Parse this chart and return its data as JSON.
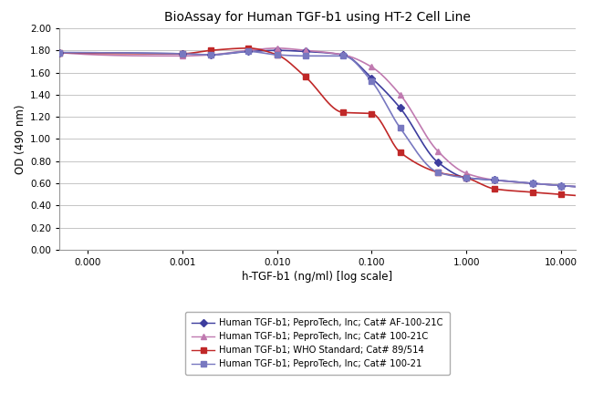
{
  "title": "BioAssay for Human TGF-b1 using HT-2 Cell Line",
  "xlabel": "h-TGF-b1 (ng/ml) [log scale]",
  "ylabel": "OD (490 nm)",
  "ylim": [
    0.0,
    2.0
  ],
  "yticks": [
    0.0,
    0.2,
    0.4,
    0.6,
    0.8,
    1.0,
    1.2,
    1.4,
    1.6,
    1.8,
    2.0
  ],
  "xtick_labels": [
    "0.000",
    "0.001",
    "0.010",
    "0.100",
    "1.000",
    "10.000"
  ],
  "xtick_log_positions": [
    -4.0,
    -3.0,
    -2.0,
    -1.0,
    0.0,
    1.0
  ],
  "xlog_min": -4.3,
  "xlog_max": 1.15,
  "series": [
    {
      "label": "Human TGF-b1; PeproTech, Inc; Cat# AF-100-21C",
      "color": "#3d3d9e",
      "marker": "D",
      "markersize": 4,
      "x_log": [
        -4.3,
        -3.0,
        -2.699,
        -2.301,
        -2.0,
        -1.699,
        -1.301,
        -1.0,
        -0.699,
        -0.301,
        0.0,
        0.301,
        0.699,
        1.0
      ],
      "y": [
        1.78,
        1.77,
        1.76,
        1.79,
        1.8,
        1.79,
        1.76,
        1.55,
        1.28,
        0.79,
        0.65,
        0.63,
        0.6,
        0.58
      ]
    },
    {
      "label": "Human TGF-b1; PeproTech, Inc; Cat# 100-21C",
      "color": "#c07ab0",
      "marker": "^",
      "markersize": 5,
      "x_log": [
        -4.3,
        -3.0,
        -2.699,
        -2.301,
        -2.0,
        -1.699,
        -1.301,
        -1.0,
        -0.699,
        -0.301,
        0.0,
        0.301,
        0.699,
        1.0
      ],
      "y": [
        1.78,
        1.75,
        1.76,
        1.8,
        1.82,
        1.8,
        1.76,
        1.65,
        1.4,
        0.89,
        0.69,
        0.63,
        0.6,
        0.58
      ]
    },
    {
      "label": "Human TGF-b1; WHO Standard; Cat# 89/514",
      "color": "#c02828",
      "marker": "s",
      "markersize": 4,
      "x_log": [
        -4.3,
        -3.0,
        -2.699,
        -2.301,
        -2.0,
        -1.699,
        -1.301,
        -1.0,
        -0.699,
        -0.301,
        0.0,
        0.301,
        0.699,
        1.0
      ],
      "y": [
        1.78,
        1.77,
        1.8,
        1.82,
        1.76,
        1.56,
        1.24,
        1.23,
        0.88,
        0.7,
        0.65,
        0.55,
        0.52,
        0.5
      ]
    },
    {
      "label": "Human TGF-b1; PeproTech, Inc; Cat# 100-21",
      "color": "#7878c0",
      "marker": "s",
      "markersize": 4,
      "x_log": [
        -4.3,
        -3.0,
        -2.699,
        -2.301,
        -2.0,
        -1.699,
        -1.301,
        -1.0,
        -0.699,
        -0.301,
        0.0,
        0.301,
        0.699,
        1.0
      ],
      "y": [
        1.78,
        1.77,
        1.76,
        1.79,
        1.76,
        1.75,
        1.75,
        1.52,
        1.1,
        0.7,
        0.65,
        0.63,
        0.6,
        0.58
      ]
    }
  ],
  "background_color": "#ffffff",
  "grid_color": "#bbbbbb",
  "title_fontsize": 10,
  "axis_label_fontsize": 8.5,
  "tick_fontsize": 7.5,
  "legend_fontsize": 7.2
}
